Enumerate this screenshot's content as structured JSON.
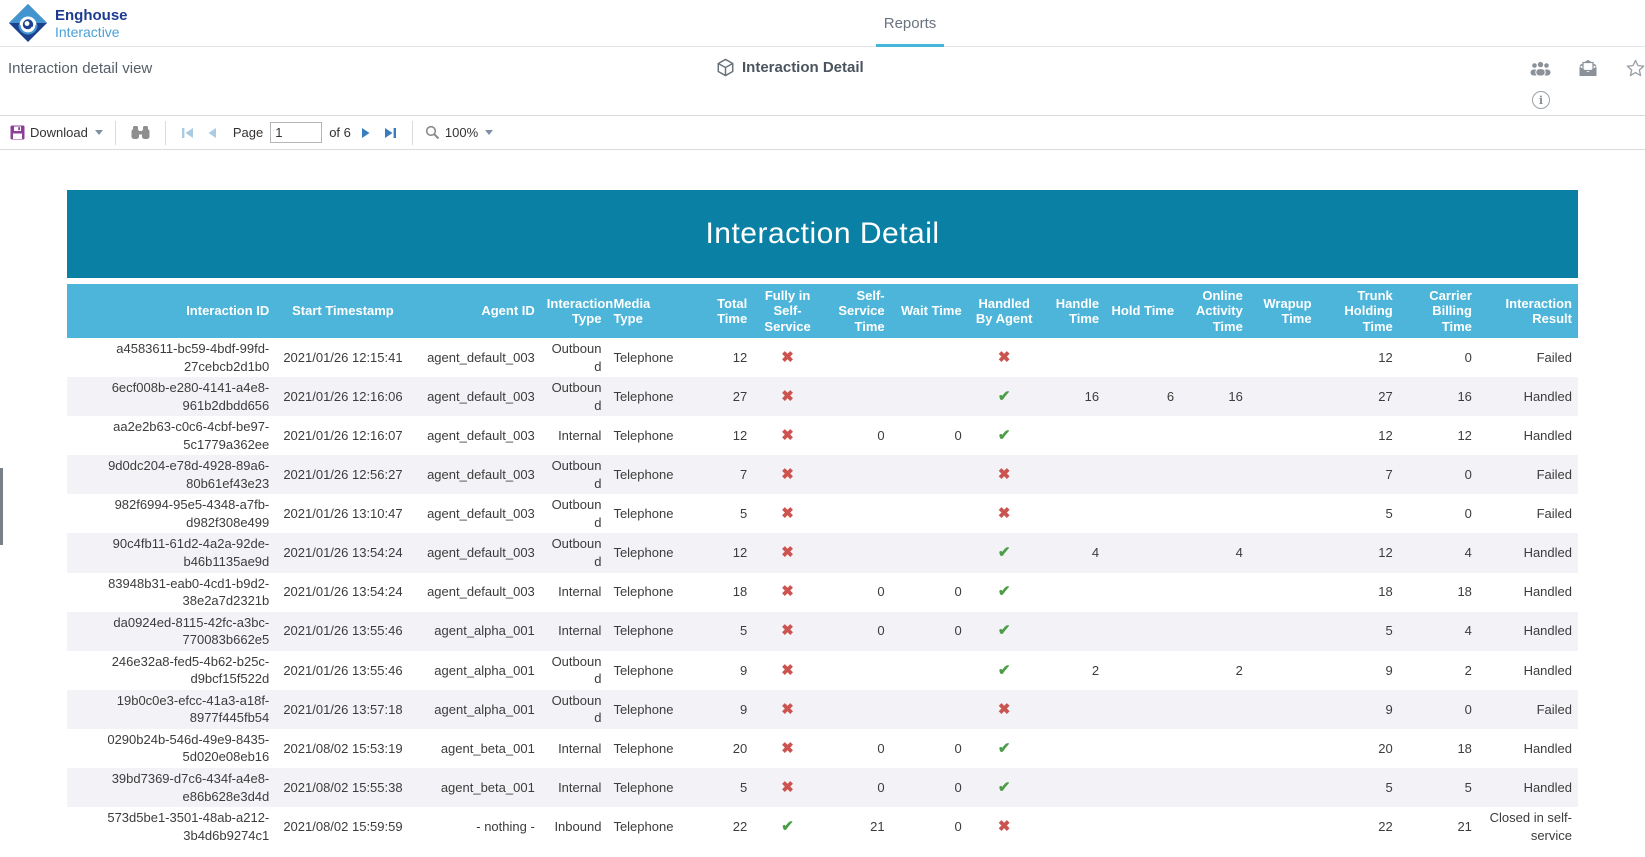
{
  "brand": {
    "name_top": "Enghouse",
    "name_bottom": "Interactive"
  },
  "nav": {
    "active_tab": "Reports"
  },
  "page": {
    "view_title": "Interaction detail view",
    "heading": "Interaction Detail"
  },
  "toolbar": {
    "download": "Download",
    "page_label": "Page",
    "page_value": "1",
    "page_count": "of 6",
    "zoom": "100%"
  },
  "colors": {
    "banner": "#0a80a4",
    "table_header": "#4db5d9",
    "tab_underline": "#45b6d9",
    "check": "#4b9e47",
    "cross": "#cb5450"
  },
  "report": {
    "title": "Interaction Detail",
    "columns": [
      {
        "key": "interaction_id",
        "label": "Interaction ID"
      },
      {
        "key": "start_timestamp",
        "label": "Start Timestamp"
      },
      {
        "key": "agent_id",
        "label": "Agent ID"
      },
      {
        "key": "interaction_type",
        "label": "Interaction Type"
      },
      {
        "key": "media_type",
        "label": "Media Type"
      },
      {
        "key": "total_time",
        "label": "Total Time"
      },
      {
        "key": "fully_in_self_service",
        "label": "Fully in Self-Service"
      },
      {
        "key": "self_service_time",
        "label": "Self-Service Time"
      },
      {
        "key": "wait_time",
        "label": "Wait Time"
      },
      {
        "key": "handled_by_agent",
        "label": "Handled By Agent"
      },
      {
        "key": "handle_time",
        "label": "Handle Time"
      },
      {
        "key": "hold_time",
        "label": "Hold Time"
      },
      {
        "key": "online_activity_time",
        "label": "Online Activity Time"
      },
      {
        "key": "wrapup_time",
        "label": "Wrapup Time"
      },
      {
        "key": "trunk_holding_time",
        "label": "Trunk Holding Time"
      },
      {
        "key": "carrier_billing_time",
        "label": "Carrier Billing Time"
      },
      {
        "key": "interaction_result",
        "label": "Interaction Result"
      }
    ],
    "rows": [
      [
        "a4583611-bc59-4bdf-99fd-27cebcb2d1b0",
        "2021/01/26 12:15:41",
        "agent_default_003",
        "Outbound",
        "Telephone",
        "12",
        "x",
        "",
        "",
        "x",
        "",
        "",
        "",
        "",
        "12",
        "0",
        "Failed"
      ],
      [
        "6ecf008b-e280-4141-a4e8-961b2dbdd656",
        "2021/01/26 12:16:06",
        "agent_default_003",
        "Outbound",
        "Telephone",
        "27",
        "x",
        "",
        "",
        "check",
        "16",
        "6",
        "16",
        "",
        "27",
        "16",
        "Handled"
      ],
      [
        "aa2e2b63-c0c6-4cbf-be97-5c1779a362ee",
        "2021/01/26 12:16:07",
        "agent_default_003",
        "Internal",
        "Telephone",
        "12",
        "x",
        "0",
        "0",
        "check",
        "",
        "",
        "",
        "",
        "12",
        "12",
        "Handled"
      ],
      [
        "9d0dc204-e78d-4928-89a6-80b61ef43e23",
        "2021/01/26 12:56:27",
        "agent_default_003",
        "Outbound",
        "Telephone",
        "7",
        "x",
        "",
        "",
        "x",
        "",
        "",
        "",
        "",
        "7",
        "0",
        "Failed"
      ],
      [
        "982f6994-95e5-4348-a7fb-d982f308e499",
        "2021/01/26 13:10:47",
        "agent_default_003",
        "Outbound",
        "Telephone",
        "5",
        "x",
        "",
        "",
        "x",
        "",
        "",
        "",
        "",
        "5",
        "0",
        "Failed"
      ],
      [
        "90c4fb11-61d2-4a2a-92de-b46b1135ae9d",
        "2021/01/26 13:54:24",
        "agent_default_003",
        "Outbound",
        "Telephone",
        "12",
        "x",
        "",
        "",
        "check",
        "4",
        "",
        "4",
        "",
        "12",
        "4",
        "Handled"
      ],
      [
        "83948b31-eab0-4cd1-b9d2-38e2a7d2321b",
        "2021/01/26 13:54:24",
        "agent_default_003",
        "Internal",
        "Telephone",
        "18",
        "x",
        "0",
        "0",
        "check",
        "",
        "",
        "",
        "",
        "18",
        "18",
        "Handled"
      ],
      [
        "da0924ed-8115-42fc-a3bc-770083b662e5",
        "2021/01/26 13:55:46",
        "agent_alpha_001",
        "Internal",
        "Telephone",
        "5",
        "x",
        "0",
        "0",
        "check",
        "",
        "",
        "",
        "",
        "5",
        "4",
        "Handled"
      ],
      [
        "246e32a8-fed5-4b62-b25c-d9bcf15f522d",
        "2021/01/26 13:55:46",
        "agent_alpha_001",
        "Outbound",
        "Telephone",
        "9",
        "x",
        "",
        "",
        "check",
        "2",
        "",
        "2",
        "",
        "9",
        "2",
        "Handled"
      ],
      [
        "19b0c0e3-efcc-41a3-a18f-8977f445fb54",
        "2021/01/26 13:57:18",
        "agent_alpha_001",
        "Outbound",
        "Telephone",
        "9",
        "x",
        "",
        "",
        "x",
        "",
        "",
        "",
        "",
        "9",
        "0",
        "Failed"
      ],
      [
        "0290b24b-546d-49e9-8435-5d020e08eb16",
        "2021/08/02 15:53:19",
        "agent_beta_001",
        "Internal",
        "Telephone",
        "20",
        "x",
        "0",
        "0",
        "check",
        "",
        "",
        "",
        "",
        "20",
        "18",
        "Handled"
      ],
      [
        "39bd7369-d7c6-434f-a4e8-e86b628e3d4d",
        "2021/08/02 15:55:38",
        "agent_beta_001",
        "Internal",
        "Telephone",
        "5",
        "x",
        "0",
        "0",
        "check",
        "",
        "",
        "",
        "",
        "5",
        "5",
        "Handled"
      ],
      [
        "573d5be1-3501-48ab-a212-3b4d6b9274c1",
        "2021/08/02 15:59:59",
        "- nothing -",
        "Inbound",
        "Telephone",
        "22",
        "check",
        "21",
        "0",
        "x",
        "",
        "",
        "",
        "",
        "22",
        "21",
        "Closed in self-service"
      ]
    ]
  }
}
